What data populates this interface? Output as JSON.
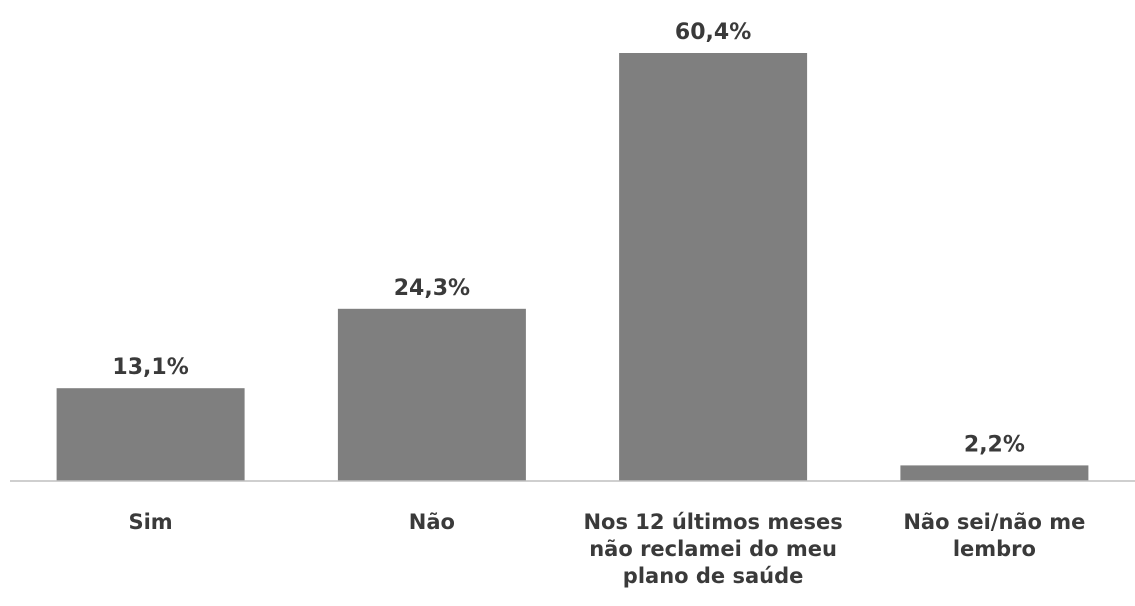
{
  "chart_data": {
    "type": "bar",
    "categories": [
      [
        "Sim"
      ],
      [
        "Não"
      ],
      [
        "Nos 12 últimos meses",
        "não reclamei do meu",
        "plano de saúde"
      ],
      [
        "Não sei/não me",
        "lembro"
      ]
    ],
    "values": [
      13.1,
      24.3,
      60.4,
      2.2
    ],
    "value_labels": [
      "13,1%",
      "24,3%",
      "60,4%",
      "2,2%"
    ],
    "bar_color": "#7f7f7f",
    "axis_color": "#bfbfbf",
    "text_color": "#3a3a3a",
    "ylim": [
      0,
      60.4
    ],
    "grid": false,
    "legend": "none"
  }
}
